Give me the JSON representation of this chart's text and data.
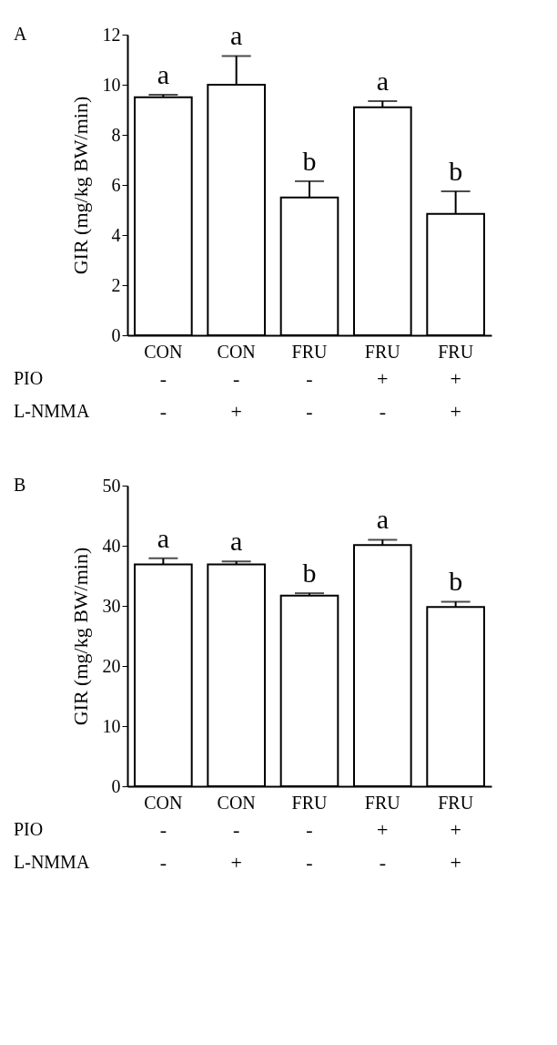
{
  "chart_data": [
    {
      "type": "bar",
      "title": "A",
      "ylabel": "GIR (mg/kg BW/min)",
      "categories": [
        "CON",
        "CON",
        "FRU",
        "FRU",
        "FRU"
      ],
      "values": [
        9.5,
        10.0,
        5.5,
        9.1,
        4.85
      ],
      "errors": [
        0.1,
        1.15,
        0.65,
        0.25,
        0.9
      ],
      "color": "#ffffff",
      "value_labels": [
        "a",
        "a",
        "b",
        "a",
        "b"
      ],
      "ylim": [
        0,
        12
      ],
      "yticks": [
        0,
        2,
        4,
        6,
        8,
        10,
        12
      ],
      "grid": false,
      "annotations": [
        "PIO",
        "-",
        "-",
        "-",
        "+",
        "+",
        "L-NMMA",
        "-",
        "+",
        "-",
        "-",
        "+"
      ]
    },
    {
      "type": "bar",
      "title": "B",
      "ylabel": "GIR (mg/kg BW/min)",
      "categories": [
        "CON",
        "CON",
        "FRU",
        "FRU",
        "FRU"
      ],
      "values": [
        36.9,
        36.9,
        31.7,
        40.1,
        29.8
      ],
      "errors": [
        1.0,
        0.5,
        0.4,
        0.9,
        0.9
      ],
      "color": "#ffffff",
      "value_labels": [
        "a",
        "a",
        "b",
        "a",
        "b"
      ],
      "ylim": [
        0,
        50
      ],
      "yticks": [
        0,
        10,
        20,
        30,
        40,
        50
      ],
      "grid": false,
      "annotations": [
        "PIO",
        "-",
        "-",
        "-",
        "+",
        "+",
        "L-NMMA",
        "-",
        "+",
        "-",
        "-",
        "+"
      ]
    }
  ]
}
